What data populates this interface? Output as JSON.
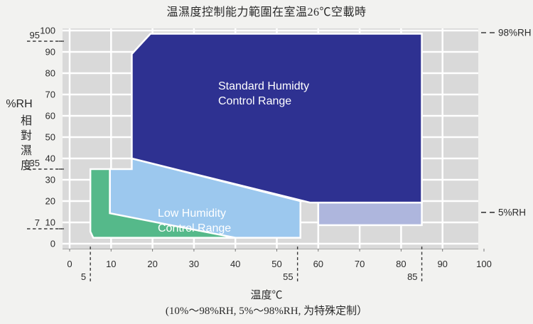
{
  "title": "温濕度控制能力範圍在室温26℃空載時",
  "footer": "(10%～98%RH, 5%～98%RH, 为特殊定制）",
  "y_axis": {
    "unit_label": "%RH",
    "cjk_label": [
      "相",
      "對",
      "濕",
      "度"
    ]
  },
  "x_axis": {
    "title": "温度℃"
  },
  "chart_data": {
    "type": "area",
    "title": "温濕度控制能力範圍在室温26℃空載時",
    "xlabel": "温度℃",
    "ylabel": "%RH 相對濕度",
    "xlim": [
      0,
      100
    ],
    "ylim": [
      0,
      100
    ],
    "grid": true,
    "x_ticks": [
      0,
      10,
      20,
      30,
      40,
      50,
      60,
      70,
      80,
      90,
      100
    ],
    "y_ticks": [
      100,
      90,
      80,
      70,
      60,
      50,
      40,
      30,
      20,
      10,
      0
    ],
    "x_markers": [
      {
        "label": "5",
        "t": 5
      },
      {
        "label": "55",
        "t": 55
      },
      {
        "label": "85",
        "t": 85
      }
    ],
    "y_markers": [
      {
        "label": "95",
        "rh": 95
      },
      {
        "label": "35",
        "rh": 35
      },
      {
        "label": "7",
        "rh": 7
      }
    ],
    "right_markers": [
      {
        "label": "98%RH",
        "rh": 99
      },
      {
        "label": "5%RH",
        "rh": 14.7
      }
    ],
    "colors": {
      "plot_bg": "#d9d9d9",
      "grid_line": "#ffffff",
      "standard": "#2e3191",
      "low": "#9cc8ee",
      "green": "#55b98a",
      "extended": "#aeb6dd"
    },
    "regions": [
      {
        "name": "low-humidity-range",
        "color": "#9cc8ee",
        "label_lines": [
          "Low Humidity",
          "Control Range"
        ],
        "points": [
          [
            9.7,
            35
          ],
          [
            15,
            35
          ],
          [
            15,
            40
          ],
          [
            55.7,
            20
          ],
          [
            55.7,
            2.8
          ],
          [
            9.7,
            2.8
          ]
        ]
      },
      {
        "name": "green-range",
        "color": "#55b98a",
        "label_lines": [],
        "points": [
          [
            5,
            35
          ],
          [
            9.7,
            35
          ],
          [
            9.7,
            14.3
          ],
          [
            40,
            2.8
          ],
          [
            5.7,
            2.8
          ],
          [
            5,
            5.7
          ]
        ]
      },
      {
        "name": "extended-5rh-range",
        "color": "#aeb6dd",
        "label_lines": [],
        "points": [
          [
            60,
            19.3
          ],
          [
            85,
            19.3
          ],
          [
            85,
            8.7
          ],
          [
            60,
            8.7
          ]
        ]
      },
      {
        "name": "standard-humidity-range",
        "color": "#2e3191",
        "label_lines": [
          "Standard Humidty",
          "Control Range"
        ],
        "points": [
          [
            15,
            40
          ],
          [
            15,
            89
          ],
          [
            19.5,
            98.5
          ],
          [
            85,
            98.5
          ],
          [
            85,
            19.3
          ],
          [
            58,
            19.3
          ]
        ]
      }
    ]
  }
}
